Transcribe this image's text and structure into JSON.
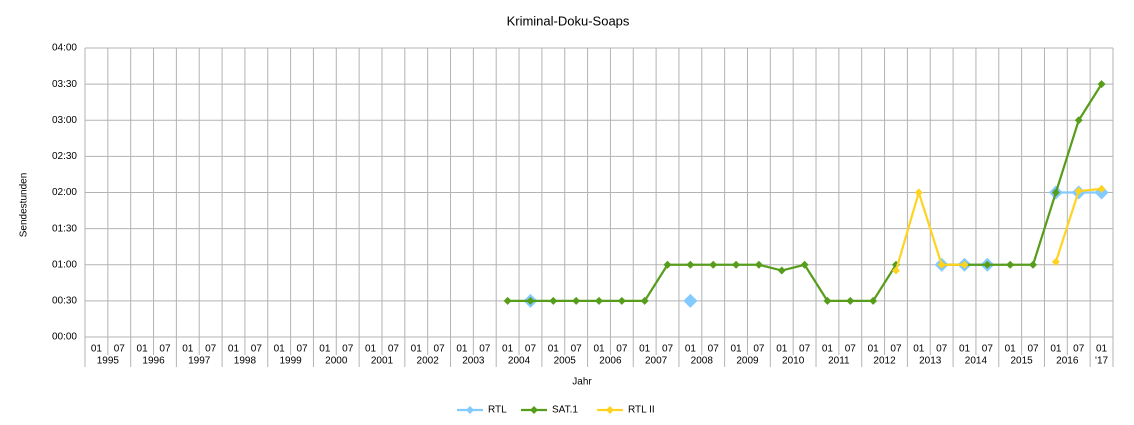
{
  "chart_data": {
    "type": "line",
    "title": "Kriminal-Doku-Soaps",
    "y_label": "Sendestunden",
    "x_label": "Jahr",
    "categories": [
      "01",
      "07",
      "01",
      "07",
      "01",
      "07",
      "01",
      "07",
      "01",
      "07",
      "01",
      "07",
      "01",
      "07",
      "01",
      "07",
      "01",
      "07",
      "01",
      "07",
      "01",
      "07",
      "01",
      "07",
      "01",
      "07",
      "01",
      "07",
      "01",
      "07",
      "01",
      "07",
      "01",
      "07",
      "01",
      "07",
      "01",
      "07",
      "01",
      "07",
      "01",
      "07",
      "01",
      "07",
      "01"
    ],
    "category_groups": [
      "1995",
      "1996",
      "1997",
      "1998",
      "1999",
      "2000",
      "2001",
      "2002",
      "2003",
      "2004",
      "2005",
      "2006",
      "2007",
      "2008",
      "2009",
      "2010",
      "2011",
      "2012",
      "2013",
      "2014",
      "2015",
      "2016",
      "'17"
    ],
    "ylim": [
      0,
      4
    ],
    "yticks": [
      {
        "value": 0,
        "label": "00:00"
      },
      {
        "value": 0.5,
        "label": "00:30"
      },
      {
        "value": 1,
        "label": "01:00"
      },
      {
        "value": 1.5,
        "label": "01:30"
      },
      {
        "value": 2,
        "label": "02:00"
      },
      {
        "value": 2.5,
        "label": "02:30"
      },
      {
        "value": 3,
        "label": "03:00"
      },
      {
        "value": 3.5,
        "label": "03:30"
      },
      {
        "value": 4,
        "label": "04:00"
      }
    ],
    "grid": true,
    "legend": "bottom",
    "series": [
      {
        "name": "RTL",
        "color": "#83caff",
        "marker_size": 7,
        "values": [
          null,
          null,
          null,
          null,
          null,
          null,
          null,
          null,
          null,
          null,
          null,
          null,
          null,
          null,
          null,
          null,
          null,
          null,
          null,
          0.5,
          null,
          null,
          null,
          null,
          null,
          null,
          0.5,
          null,
          null,
          null,
          null,
          null,
          null,
          null,
          null,
          null,
          null,
          1,
          1,
          1,
          null,
          null,
          2,
          2,
          2
        ]
      },
      {
        "name": "SAT.1",
        "color": "#579d1c",
        "marker_size": 4,
        "values": [
          null,
          null,
          null,
          null,
          null,
          null,
          null,
          null,
          null,
          null,
          null,
          null,
          null,
          null,
          null,
          null,
          null,
          null,
          0.5,
          0.5,
          0.5,
          0.5,
          0.5,
          0.5,
          0.5,
          1,
          1,
          1,
          1,
          1,
          0.92,
          1,
          0.5,
          0.5,
          0.5,
          1,
          null,
          1,
          1,
          1,
          1,
          1,
          2,
          3,
          3.5
        ]
      },
      {
        "name": "RTL II",
        "color": "#ffd320",
        "marker_size": 4,
        "values": [
          null,
          null,
          null,
          null,
          null,
          null,
          null,
          null,
          null,
          null,
          null,
          null,
          null,
          null,
          null,
          null,
          null,
          null,
          null,
          null,
          null,
          null,
          null,
          null,
          null,
          null,
          null,
          null,
          null,
          null,
          null,
          null,
          null,
          null,
          null,
          0.92,
          2,
          1,
          1,
          null,
          null,
          null,
          1.04,
          2.02,
          2.05
        ]
      }
    ]
  }
}
